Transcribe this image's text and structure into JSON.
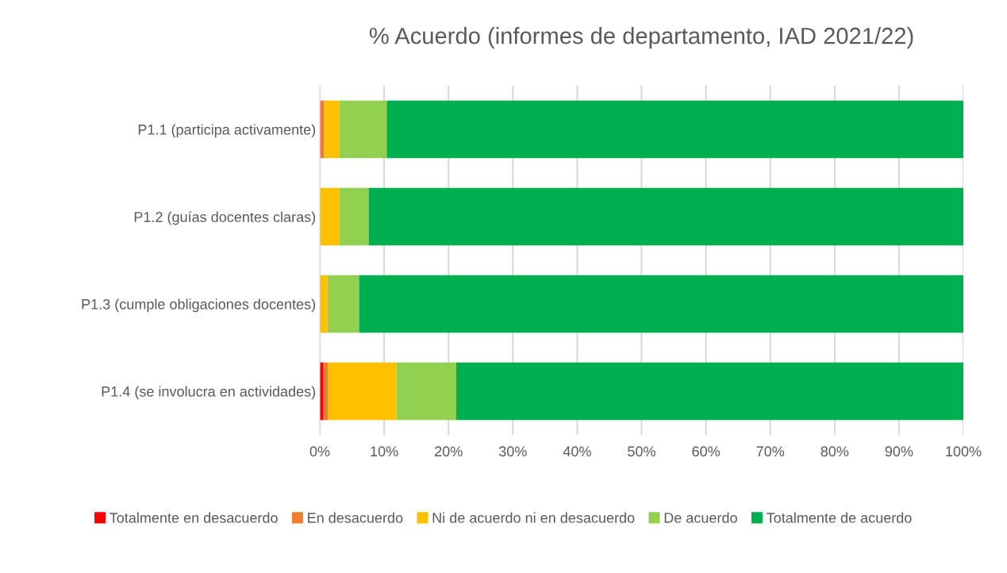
{
  "chart_data": {
    "type": "bar",
    "orientation": "horizontal",
    "stacked": true,
    "title": "% Acuerdo (informes de departamento, IAD 2021/22)",
    "categories": [
      "P1.1 (participa activamente)",
      "P1.2 (guías docentes claras)",
      "P1.3 (cumple obligaciones docentes)",
      "P1.4 (se involucra en actividades)"
    ],
    "series": [
      {
        "name": "Totalmente en desacuerdo",
        "color": "#ff0000",
        "values": [
          0,
          0,
          0,
          0.5
        ]
      },
      {
        "name": "En desacuerdo",
        "color": "#ed7d31",
        "values": [
          0.7,
          0,
          0,
          0.8
        ]
      },
      {
        "name": "Ni de acuerdo ni en desacuerdo",
        "color": "#ffc000",
        "values": [
          2.3,
          3.0,
          1.2,
          10.6
        ]
      },
      {
        "name": "De acuerdo",
        "color": "#92d050",
        "values": [
          7.4,
          4.6,
          4.9,
          9.3
        ]
      },
      {
        "name": "Totalmente de acuerdo",
        "color": "#00b050",
        "values": [
          89.6,
          92.4,
          93.9,
          78.8
        ]
      }
    ],
    "xlim": [
      0,
      100
    ],
    "xticks": [
      {
        "value": 0,
        "label": "0%"
      },
      {
        "value": 10,
        "label": "10%"
      },
      {
        "value": 20,
        "label": "20%"
      },
      {
        "value": 30,
        "label": "30%"
      },
      {
        "value": 40,
        "label": "40%"
      },
      {
        "value": 50,
        "label": "50%"
      },
      {
        "value": 60,
        "label": "60%"
      },
      {
        "value": 70,
        "label": "70%"
      },
      {
        "value": 80,
        "label": "80%"
      },
      {
        "value": 90,
        "label": "90%"
      },
      {
        "value": 100,
        "label": "100%"
      }
    ],
    "grid": "x",
    "legend": "bottom"
  }
}
